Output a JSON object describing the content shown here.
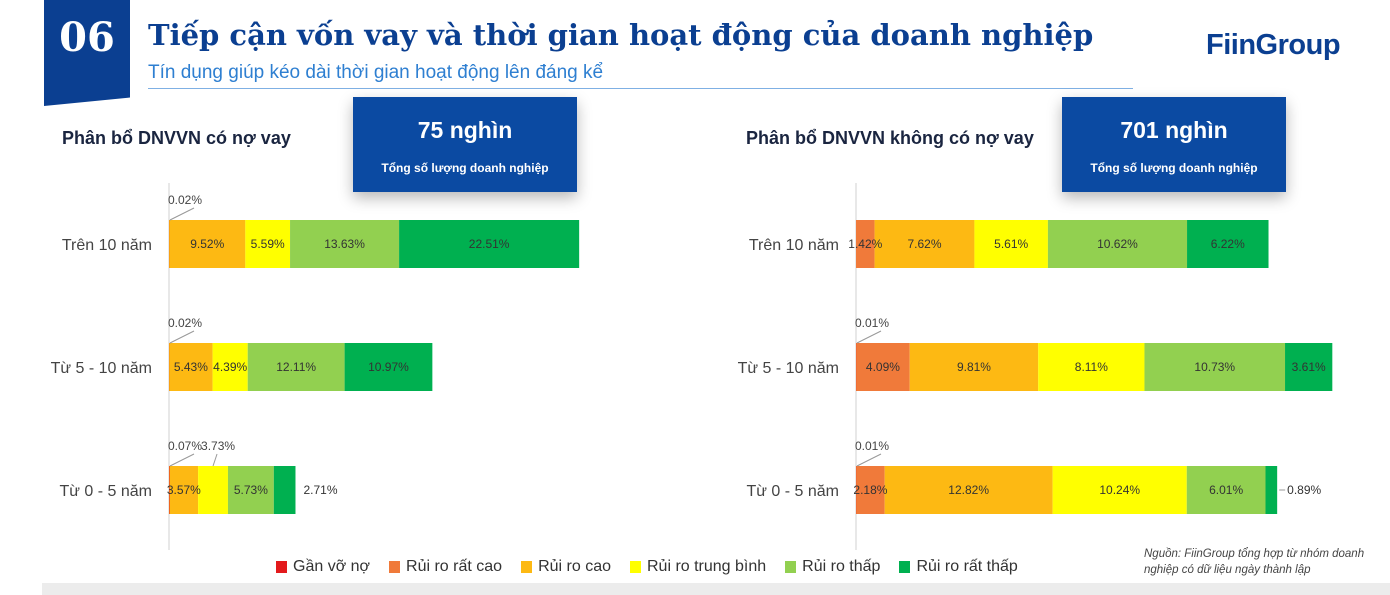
{
  "header": {
    "section_number": "06",
    "title": "Tiếp cận vốn vay và thời gian hoạt động của doanh nghiệp",
    "subtitle": "Tín dụng giúp kéo dài thời gian hoạt động lên đáng kể",
    "brand": "FiinGroup"
  },
  "legend": {
    "items": [
      {
        "label": "Gần vỡ nợ",
        "color": "#e31a1c"
      },
      {
        "label": "Rủi ro rất cao",
        "color": "#f07a3a"
      },
      {
        "label": "Rủi ro cao",
        "color": "#fdb913"
      },
      {
        "label": "Rủi ro trung bình",
        "color": "#ffff00"
      },
      {
        "label": "Rủi ro thấp",
        "color": "#92d050"
      },
      {
        "label": "Rủi ro rất thấp",
        "color": "#00b050"
      }
    ]
  },
  "source": "Nguồn: FiinGroup tổng hợp từ nhóm doanh nghiệp có dữ liệu ngày thành lập",
  "chart_data": [
    {
      "type": "bar",
      "orientation": "horizontal",
      "stacked": true,
      "title": "Phân bổ DNVVN có nợ vay",
      "kpi": {
        "value": "75 nghìn",
        "label": "Tổng số lượng doanh nghiệp"
      },
      "categories": [
        "Trên 10 năm",
        "Từ 5 - 10 năm",
        "Từ 0 - 5 năm"
      ],
      "series": [
        {
          "name": "Gần vỡ nợ",
          "values": [
            0.02,
            0.02,
            0.07
          ]
        },
        {
          "name": "Rủi ro rất cao",
          "values": [
            0,
            0,
            0
          ]
        },
        {
          "name": "Rủi ro cao",
          "values": [
            9.52,
            5.43,
            3.57
          ]
        },
        {
          "name": "Rủi ro trung bình",
          "values": [
            5.59,
            4.39,
            3.73
          ]
        },
        {
          "name": "Rủi ro thấp",
          "values": [
            13.63,
            12.11,
            5.73
          ]
        },
        {
          "name": "Rủi ro rất thấp",
          "values": [
            22.51,
            10.97,
            2.71
          ]
        }
      ],
      "data_labels": [
        [
          "0.02%",
          "",
          "9.52%",
          "5.59%",
          "13.63%",
          "22.51%"
        ],
        [
          "0.02%",
          "",
          "5.43%",
          "4.39%",
          "12.11%",
          "10.97%"
        ],
        [
          "0.07%",
          "",
          "3.57%",
          "3.73%",
          "5.73%",
          "2.71%"
        ]
      ],
      "unit": "%"
    },
    {
      "type": "bar",
      "orientation": "horizontal",
      "stacked": true,
      "title": "Phân bổ DNVVN không có nợ vay",
      "kpi": {
        "value": "701 nghìn",
        "label": "Tổng số lượng doanh nghiệp"
      },
      "categories": [
        "Trên 10 năm",
        "Từ 5 - 10 năm",
        "Từ 0 - 5 năm"
      ],
      "series": [
        {
          "name": "Gần vỡ nợ",
          "values": [
            0,
            0.01,
            0.01
          ]
        },
        {
          "name": "Rủi ro rất cao",
          "values": [
            1.42,
            4.09,
            2.18
          ]
        },
        {
          "name": "Rủi ro cao",
          "values": [
            7.62,
            9.81,
            12.82
          ]
        },
        {
          "name": "Rủi ro trung bình",
          "values": [
            5.61,
            8.11,
            10.24
          ]
        },
        {
          "name": "Rủi ro thấp",
          "values": [
            10.62,
            10.73,
            6.01
          ]
        },
        {
          "name": "Rủi ro rất thấp",
          "values": [
            6.22,
            3.61,
            0.89
          ]
        }
      ],
      "data_labels": [
        [
          "",
          "1.42%",
          "7.62%",
          "5.61%",
          "10.62%",
          "6.22%"
        ],
        [
          "0.01%",
          "4.09%",
          "9.81%",
          "8.11%",
          "10.73%",
          "3.61%"
        ],
        [
          "0.01%",
          "2.18%",
          "12.82%",
          "10.24%",
          "6.01%",
          "0.89%"
        ]
      ],
      "unit": "%"
    }
  ]
}
